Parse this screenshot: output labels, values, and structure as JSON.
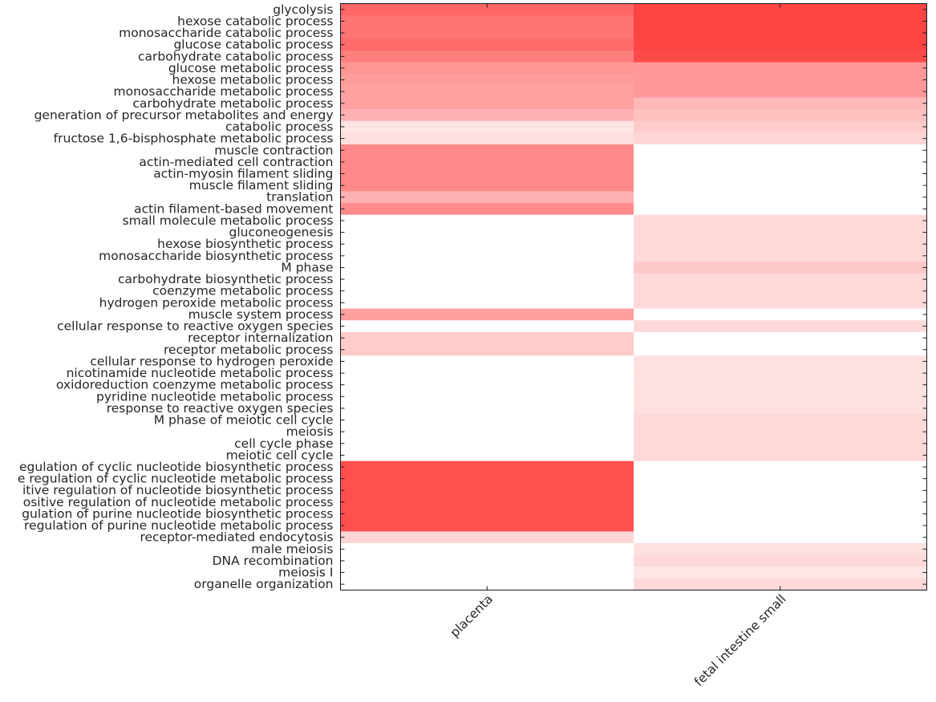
{
  "chart_data": {
    "type": "heatmap",
    "title": "",
    "xlabel": "",
    "ylabel": "",
    "color_scale": {
      "low": "#ffffff",
      "high": "#ff4040",
      "range": [
        0,
        1
      ]
    },
    "columns": [
      "placenta",
      "fetal intestine small"
    ],
    "rows": [
      "glycolysis",
      "hexose catabolic process",
      "monosaccharide catabolic process",
      "glucose catabolic process",
      "carbohydrate catabolic process",
      "glucose metabolic process",
      "hexose metabolic process",
      "monosaccharide metabolic process",
      "carbohydrate metabolic process",
      "generation of precursor metabolites and energy",
      "catabolic process",
      "fructose 1,6-bisphosphate metabolic process",
      "muscle contraction",
      "actin-mediated cell contraction",
      "actin-myosin filament sliding",
      "muscle filament sliding",
      "translation",
      "actin filament-based movement",
      "small molecule metabolic process",
      "gluconeogenesis",
      "hexose biosynthetic process",
      "monosaccharide biosynthetic process",
      "M phase",
      "carbohydrate biosynthetic process",
      "coenzyme metabolic process",
      "hydrogen peroxide metabolic process",
      "muscle system process",
      "cellular response to reactive oxygen species",
      "receptor internalization",
      "receptor metabolic process",
      "cellular response to hydrogen peroxide",
      "nicotinamide nucleotide metabolic process",
      "oxidoreduction coenzyme metabolic process",
      "pyridine nucleotide metabolic process",
      "response to reactive oxygen species",
      "M phase of meiotic cell cycle",
      "meiosis",
      "cell cycle phase",
      "meiotic cell cycle",
      "egulation of cyclic nucleotide biosynthetic process",
      "e regulation of cyclic nucleotide metabolic process",
      "itive regulation of nucleotide biosynthetic process",
      "ositive regulation of nucleotide metabolic process",
      "gulation of purine nucleotide biosynthetic process",
      "regulation of purine nucleotide metabolic process",
      "receptor-mediated endocytosis",
      "male meiosis",
      "DNA recombination",
      "meiosis I",
      "organelle organization"
    ],
    "values": [
      [
        0.8,
        0.98
      ],
      [
        0.73,
        0.98
      ],
      [
        0.73,
        0.98
      ],
      [
        0.78,
        0.98
      ],
      [
        0.67,
        0.95
      ],
      [
        0.55,
        0.54
      ],
      [
        0.52,
        0.54
      ],
      [
        0.49,
        0.54
      ],
      [
        0.49,
        0.37
      ],
      [
        0.41,
        0.33
      ],
      [
        0.14,
        0.28
      ],
      [
        0.17,
        0.22
      ],
      [
        0.62,
        0
      ],
      [
        0.62,
        0
      ],
      [
        0.62,
        0
      ],
      [
        0.62,
        0
      ],
      [
        0.41,
        0
      ],
      [
        0.61,
        0
      ],
      [
        0,
        0.2
      ],
      [
        0,
        0.2
      ],
      [
        0,
        0.2
      ],
      [
        0,
        0.2
      ],
      [
        0,
        0.29
      ],
      [
        0,
        0.2
      ],
      [
        0,
        0.2
      ],
      [
        0,
        0.2
      ],
      [
        0.51,
        0
      ],
      [
        0,
        0.2
      ],
      [
        0.27,
        0
      ],
      [
        0.27,
        0
      ],
      [
        0,
        0.16
      ],
      [
        0,
        0.16
      ],
      [
        0,
        0.16
      ],
      [
        0,
        0.16
      ],
      [
        0,
        0.16
      ],
      [
        0,
        0.2
      ],
      [
        0,
        0.2
      ],
      [
        0,
        0.2
      ],
      [
        0,
        0.2
      ],
      [
        0.92,
        0
      ],
      [
        0.92,
        0
      ],
      [
        0.92,
        0
      ],
      [
        0.92,
        0
      ],
      [
        0.92,
        0
      ],
      [
        0.92,
        0
      ],
      [
        0.22,
        0
      ],
      [
        0,
        0.16
      ],
      [
        0,
        0.2
      ],
      [
        0,
        0.13
      ],
      [
        0,
        0.2
      ]
    ],
    "grid": false,
    "legend": "none"
  }
}
